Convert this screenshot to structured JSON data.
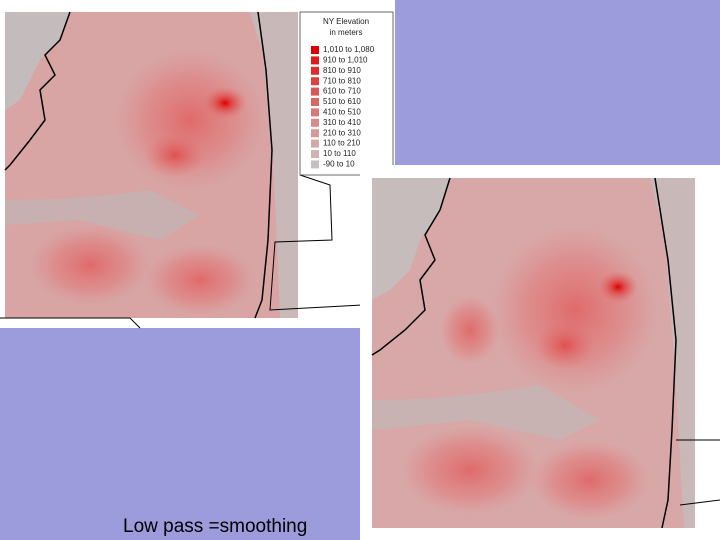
{
  "legend": {
    "title": "NY Elevation",
    "subtitle": "in meters",
    "items": [
      {
        "label": "1,010 to 1,080",
        "color": "#e00000"
      },
      {
        "label": "910 to 1,010",
        "color": "#e01818"
      },
      {
        "label": "810 to 910",
        "color": "#e02c2c"
      },
      {
        "label": "710 to 810",
        "color": "#de4040"
      },
      {
        "label": "610 to 710",
        "color": "#dc5454"
      },
      {
        "label": "510 to 610",
        "color": "#da6666"
      },
      {
        "label": "410 to 510",
        "color": "#d87878"
      },
      {
        "label": "310 to 410",
        "color": "#d68a8a"
      },
      {
        "label": "210 to 310",
        "color": "#d49a9a"
      },
      {
        "label": "110 to 210",
        "color": "#d2a8a8"
      },
      {
        "label": "10 to 110",
        "color": "#ccb4b4"
      },
      {
        "label": "-90 to 10",
        "color": "#c4c0c0"
      }
    ]
  },
  "caption": "Low pass =smoothing"
}
